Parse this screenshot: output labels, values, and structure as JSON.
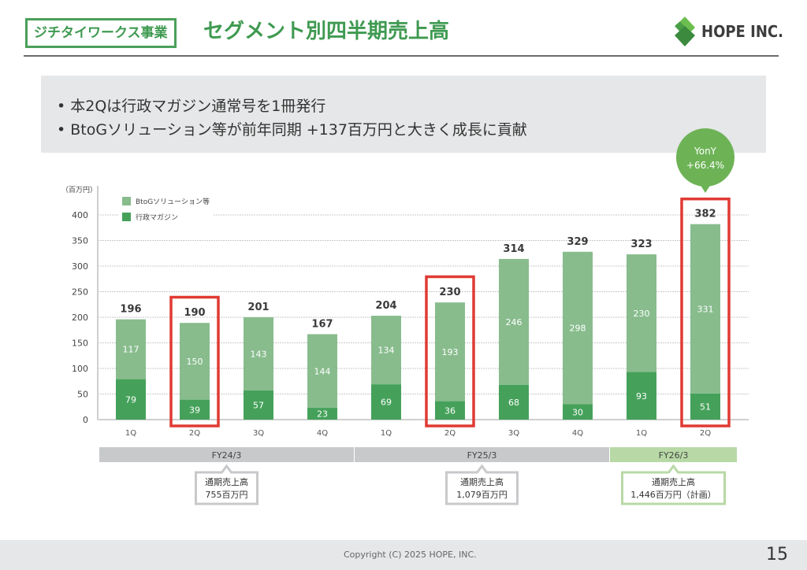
{
  "header": {
    "segment_tag": "ジチタイワークス事業",
    "title": "セグメント別四半期売上高",
    "logo_text": "HOPE INC."
  },
  "bullets": [
    "• 本2Qは行政マガジン通常号を1冊発行",
    "• BtoGソリューション等が前年同期 +137百万円と大きく成長に貢献"
  ],
  "colors": {
    "brand_green": "#3f9a51",
    "btog": "#88bc8d",
    "magazine": "#45a15a",
    "highlight": "#e03a33",
    "fy_past": "#c8c9cb",
    "fy_current": "#b8d9a6",
    "bubble": "#6db356"
  },
  "chart_data": {
    "type": "bar",
    "stacked": true,
    "unit_label": "（百万円）",
    "ylim": [
      0,
      400
    ],
    "yticks": [
      0,
      50,
      100,
      150,
      200,
      250,
      300,
      350,
      400
    ],
    "grid": true,
    "legend_position": "top-left",
    "categories": [
      "1Q",
      "2Q",
      "3Q",
      "4Q",
      "1Q",
      "2Q",
      "3Q",
      "4Q",
      "1Q",
      "2Q"
    ],
    "series": [
      {
        "name": "行政マガジン",
        "values": [
          79,
          39,
          57,
          23,
          69,
          36,
          68,
          30,
          93,
          51
        ]
      },
      {
        "name": "BtoGソリューション等",
        "values": [
          117,
          150,
          143,
          144,
          134,
          193,
          246,
          298,
          230,
          331
        ]
      }
    ],
    "totals": [
      196,
      190,
      201,
      167,
      204,
      230,
      314,
      329,
      323,
      382
    ],
    "highlighted_indices": [
      1,
      5,
      9
    ],
    "fiscal_years": [
      {
        "label": "FY24/3",
        "start": 0,
        "end": 3,
        "callout": [
          "通期売上高",
          "755百万円"
        ],
        "current": false
      },
      {
        "label": "FY25/3",
        "start": 4,
        "end": 7,
        "callout": [
          "通期売上高",
          "1,079百万円"
        ],
        "current": false
      },
      {
        "label": "FY26/3",
        "start": 8,
        "end": 9,
        "callout": [
          "通期売上高",
          "1,446百万円（計画）"
        ],
        "current": true
      }
    ],
    "annotation": {
      "index": 9,
      "lines": [
        "YonY",
        "+66.4%"
      ]
    }
  },
  "footer": {
    "copyright": "Copyright (C) 2025 HOPE, INC.",
    "page_number": "15"
  }
}
